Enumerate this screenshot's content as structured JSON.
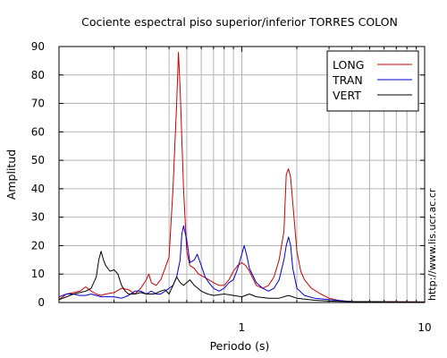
{
  "chart_data": {
    "type": "line",
    "title": "Cociente espectral piso superior/inferior  TORRES COLON",
    "xlabel": "Periodo (s)",
    "ylabel": "Amplitud",
    "credit": "http://www.lis.ucr.ac.cr",
    "xscale": "log",
    "xlim": [
      0.1,
      10
    ],
    "ylim": [
      0,
      90
    ],
    "x_tick_labels": [
      "1",
      "10"
    ],
    "y_tick_labels": [
      "0",
      "10",
      "20",
      "30",
      "40",
      "50",
      "60",
      "70",
      "80",
      "90"
    ],
    "grid": true,
    "legend_position": "top-right",
    "series": [
      {
        "name": "LONG",
        "color": "#cc0000",
        "points": [
          [
            0.1,
            1
          ],
          [
            0.11,
            3
          ],
          [
            0.12,
            3.5
          ],
          [
            0.13,
            4
          ],
          [
            0.14,
            5.5
          ],
          [
            0.15,
            4
          ],
          [
            0.16,
            3
          ],
          [
            0.17,
            2.5
          ],
          [
            0.18,
            3
          ],
          [
            0.2,
            3.5
          ],
          [
            0.22,
            5
          ],
          [
            0.24,
            4.5
          ],
          [
            0.26,
            3
          ],
          [
            0.28,
            5
          ],
          [
            0.3,
            8
          ],
          [
            0.31,
            10
          ],
          [
            0.32,
            7
          ],
          [
            0.34,
            6
          ],
          [
            0.36,
            8
          ],
          [
            0.38,
            12
          ],
          [
            0.4,
            16
          ],
          [
            0.42,
            40
          ],
          [
            0.44,
            70
          ],
          [
            0.45,
            88
          ],
          [
            0.46,
            75
          ],
          [
            0.48,
            40
          ],
          [
            0.5,
            18
          ],
          [
            0.52,
            13
          ],
          [
            0.55,
            12
          ],
          [
            0.58,
            10
          ],
          [
            0.62,
            9
          ],
          [
            0.66,
            8
          ],
          [
            0.7,
            7
          ],
          [
            0.75,
            6
          ],
          [
            0.8,
            6
          ],
          [
            0.85,
            8
          ],
          [
            0.9,
            11
          ],
          [
            0.95,
            13
          ],
          [
            1.0,
            14
          ],
          [
            1.05,
            13
          ],
          [
            1.1,
            11
          ],
          [
            1.2,
            6
          ],
          [
            1.3,
            5
          ],
          [
            1.4,
            6
          ],
          [
            1.5,
            9
          ],
          [
            1.6,
            15
          ],
          [
            1.7,
            25
          ],
          [
            1.75,
            45
          ],
          [
            1.8,
            47
          ],
          [
            1.85,
            44
          ],
          [
            1.9,
            35
          ],
          [
            2.0,
            18
          ],
          [
            2.1,
            11
          ],
          [
            2.2,
            8
          ],
          [
            2.4,
            5
          ],
          [
            2.7,
            3
          ],
          [
            3.0,
            1.5
          ],
          [
            3.5,
            0.5
          ],
          [
            4.0,
            0.3
          ],
          [
            10,
            0.2
          ]
        ]
      },
      {
        "name": "TRAN",
        "color": "#0000cc",
        "points": [
          [
            0.1,
            2
          ],
          [
            0.11,
            3
          ],
          [
            0.12,
            3
          ],
          [
            0.13,
            2.5
          ],
          [
            0.14,
            2.5
          ],
          [
            0.15,
            3
          ],
          [
            0.16,
            2.5
          ],
          [
            0.17,
            2
          ],
          [
            0.18,
            2
          ],
          [
            0.2,
            2
          ],
          [
            0.22,
            1.5
          ],
          [
            0.24,
            2.5
          ],
          [
            0.26,
            4
          ],
          [
            0.28,
            4
          ],
          [
            0.3,
            3
          ],
          [
            0.32,
            4
          ],
          [
            0.34,
            3
          ],
          [
            0.36,
            3
          ],
          [
            0.38,
            4
          ],
          [
            0.4,
            5
          ],
          [
            0.42,
            6
          ],
          [
            0.44,
            9
          ],
          [
            0.46,
            15
          ],
          [
            0.47,
            24
          ],
          [
            0.48,
            27
          ],
          [
            0.5,
            22
          ],
          [
            0.52,
            14
          ],
          [
            0.55,
            15
          ],
          [
            0.57,
            17
          ],
          [
            0.6,
            13
          ],
          [
            0.63,
            9
          ],
          [
            0.66,
            7
          ],
          [
            0.7,
            5
          ],
          [
            0.75,
            4
          ],
          [
            0.8,
            5
          ],
          [
            0.85,
            7
          ],
          [
            0.9,
            8
          ],
          [
            0.95,
            12
          ],
          [
            1.0,
            17
          ],
          [
            1.03,
            20
          ],
          [
            1.06,
            17
          ],
          [
            1.1,
            12
          ],
          [
            1.2,
            7
          ],
          [
            1.3,
            5
          ],
          [
            1.4,
            4
          ],
          [
            1.5,
            5
          ],
          [
            1.6,
            8
          ],
          [
            1.7,
            15
          ],
          [
            1.75,
            20
          ],
          [
            1.8,
            23
          ],
          [
            1.85,
            20
          ],
          [
            1.9,
            12
          ],
          [
            2.0,
            5
          ],
          [
            2.2,
            2.5
          ],
          [
            2.5,
            1.5
          ],
          [
            3.0,
            1
          ],
          [
            4.0,
            0.3
          ],
          [
            10,
            0.1
          ]
        ]
      },
      {
        "name": "VERT",
        "color": "#000000",
        "points": [
          [
            0.1,
            1
          ],
          [
            0.11,
            2
          ],
          [
            0.12,
            3
          ],
          [
            0.13,
            3.5
          ],
          [
            0.14,
            4
          ],
          [
            0.15,
            5
          ],
          [
            0.16,
            9
          ],
          [
            0.165,
            15
          ],
          [
            0.17,
            18
          ],
          [
            0.175,
            15
          ],
          [
            0.18,
            13
          ],
          [
            0.19,
            11
          ],
          [
            0.2,
            11.5
          ],
          [
            0.21,
            10
          ],
          [
            0.22,
            6
          ],
          [
            0.23,
            4
          ],
          [
            0.24,
            3
          ],
          [
            0.26,
            3
          ],
          [
            0.28,
            3.5
          ],
          [
            0.3,
            3
          ],
          [
            0.33,
            3
          ],
          [
            0.36,
            4
          ],
          [
            0.38,
            4.5
          ],
          [
            0.4,
            3
          ],
          [
            0.42,
            6
          ],
          [
            0.44,
            9
          ],
          [
            0.46,
            7
          ],
          [
            0.48,
            6
          ],
          [
            0.5,
            7
          ],
          [
            0.52,
            8
          ],
          [
            0.55,
            6
          ],
          [
            0.6,
            4
          ],
          [
            0.65,
            3
          ],
          [
            0.7,
            2.5
          ],
          [
            0.8,
            3
          ],
          [
            0.9,
            2.5
          ],
          [
            1.0,
            2
          ],
          [
            1.1,
            3
          ],
          [
            1.2,
            2
          ],
          [
            1.4,
            1.5
          ],
          [
            1.6,
            1.5
          ],
          [
            1.8,
            2.5
          ],
          [
            2.0,
            1.5
          ],
          [
            2.5,
            0.8
          ],
          [
            3.0,
            0.5
          ],
          [
            4.0,
            0.3
          ],
          [
            10,
            0.2
          ]
        ]
      }
    ]
  }
}
